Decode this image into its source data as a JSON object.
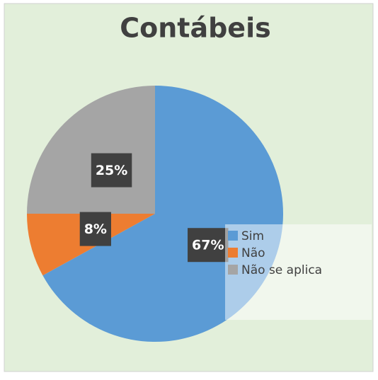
{
  "chart_data": {
    "type": "pie",
    "title": "Contábeis",
    "categories": [
      "Sim",
      "Não",
      "Não se aplica"
    ],
    "values": [
      67,
      8,
      25
    ],
    "value_labels": [
      "67%",
      "8%",
      "25%"
    ],
    "colors": [
      "#5b9bd5",
      "#ed7d31",
      "#a5a5a5"
    ],
    "legend": "right"
  }
}
